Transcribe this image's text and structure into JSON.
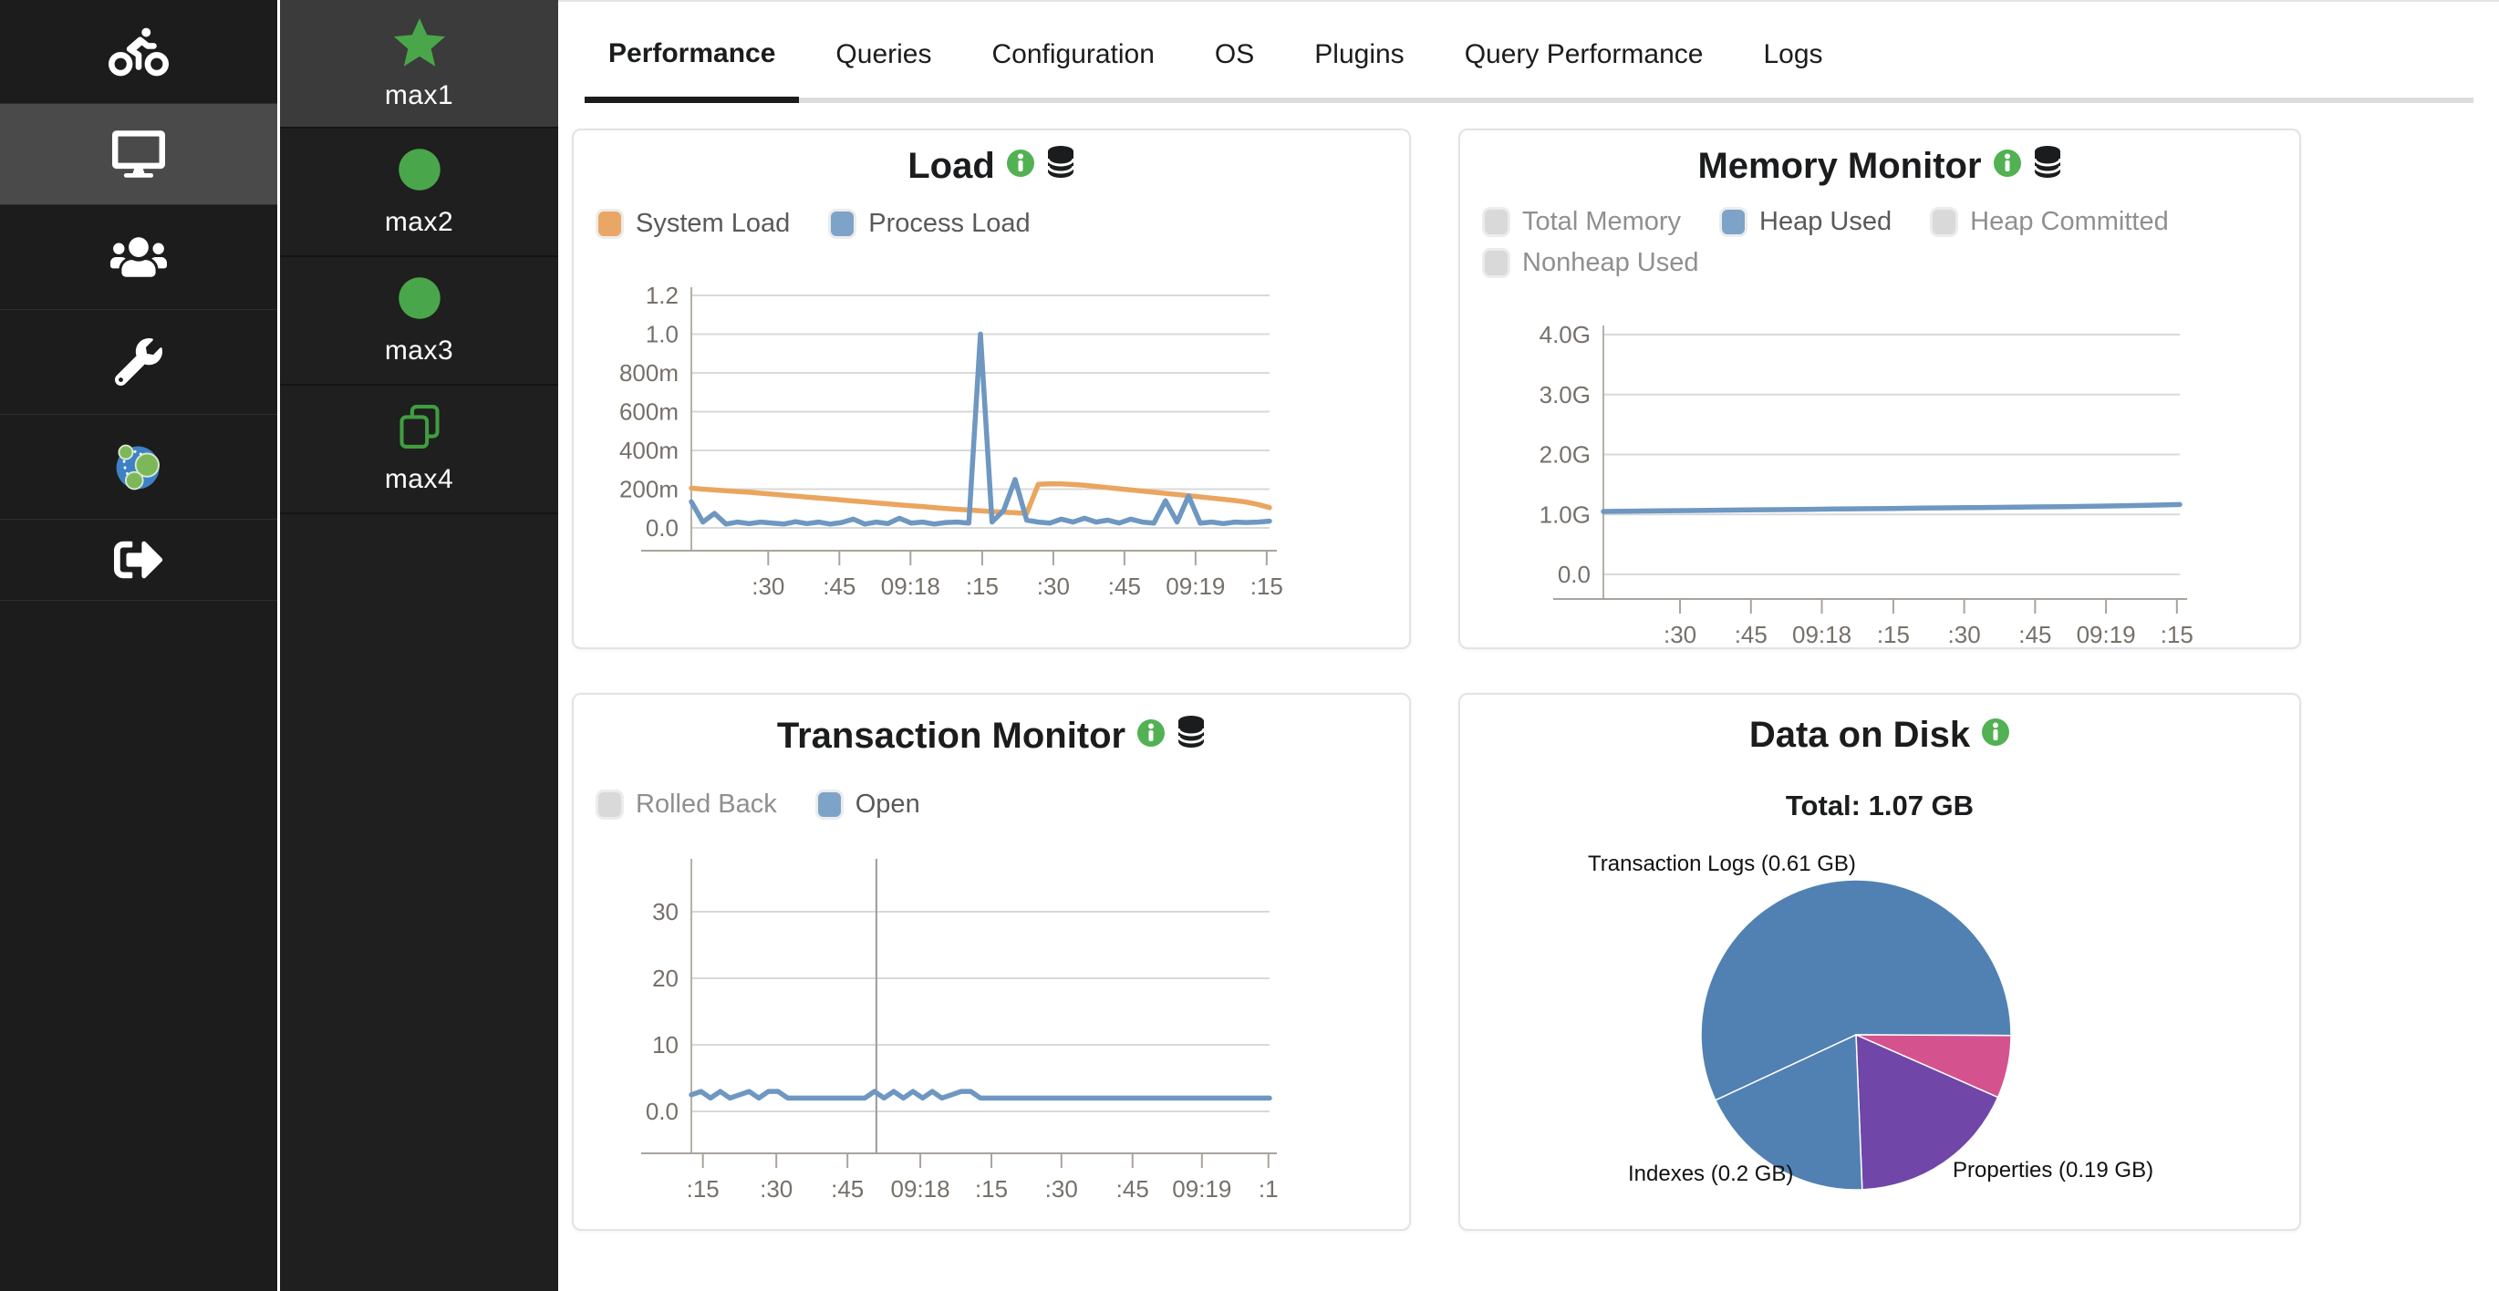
{
  "theme": {
    "accent_green": "#4aa64a",
    "info_green": "#52b152",
    "sidebar_bg": "#1c1c1c",
    "sidebar_active_bg": "#4a4a4a",
    "nodelist_active_bg": "#3b3b3b",
    "chart_blue": "#6e97c1",
    "chart_orange": "#eaa55e",
    "disabled_swatch": "#d9d9d9"
  },
  "sidebar": {
    "items": [
      {
        "icon": "cyclist-icon",
        "name": "logo",
        "active": false
      },
      {
        "icon": "monitor-icon",
        "name": "monitoring",
        "active": true
      },
      {
        "icon": "users-icon",
        "name": "users",
        "active": false
      },
      {
        "icon": "wrench-icon",
        "name": "settings",
        "active": false
      },
      {
        "icon": "neo4j-icon",
        "name": "neo4j",
        "active": false
      },
      {
        "icon": "sign-out-icon",
        "name": "sign-out",
        "active": false
      }
    ]
  },
  "nodes": [
    {
      "label": "max1",
      "icon": "star-icon",
      "active": true
    },
    {
      "label": "max2",
      "icon": "circle-icon",
      "active": false
    },
    {
      "label": "max3",
      "icon": "circle-icon",
      "active": false
    },
    {
      "label": "max4",
      "icon": "copy-icon",
      "active": false
    }
  ],
  "tabs": [
    {
      "label": "Performance",
      "active": true
    },
    {
      "label": "Queries",
      "active": false
    },
    {
      "label": "Configuration",
      "active": false
    },
    {
      "label": "OS",
      "active": false
    },
    {
      "label": "Plugins",
      "active": false
    },
    {
      "label": "Query Performance",
      "active": false
    },
    {
      "label": "Logs",
      "active": false
    }
  ],
  "cards": {
    "load": {
      "title": "Load",
      "title_icons": [
        "info-icon",
        "database-icon"
      ],
      "legend": [
        {
          "label": "System Load",
          "swatch": "#e9a765",
          "enabled": true
        },
        {
          "label": "Process Load",
          "swatch": "#7ea3c8",
          "enabled": true
        }
      ]
    },
    "memory": {
      "title": "Memory Monitor",
      "title_icons": [
        "info-icon",
        "database-icon"
      ],
      "legend": [
        {
          "label": "Total Memory",
          "swatch": "#d9d9d9",
          "enabled": false
        },
        {
          "label": "Heap Used",
          "swatch": "#7ea3c8",
          "enabled": true
        },
        {
          "label": "Heap Committed",
          "swatch": "#d9d9d9",
          "enabled": false
        },
        {
          "label": "Nonheap Used",
          "swatch": "#d9d9d9",
          "enabled": false
        }
      ]
    },
    "transaction": {
      "title": "Transaction Monitor",
      "title_icons": [
        "info-icon",
        "database-icon"
      ],
      "legend": [
        {
          "label": "Rolled Back",
          "swatch": "#d9d9d9",
          "enabled": false
        },
        {
          "label": "Open",
          "swatch": "#7ea3c8",
          "enabled": true
        }
      ]
    },
    "disk": {
      "title": "Data on Disk",
      "title_icons": [
        "info-icon"
      ],
      "total": "Total: 1.07 GB"
    }
  },
  "chart_data": [
    {
      "type": "line",
      "title": "Load",
      "x_ticks": [
        ":30",
        ":45",
        "09:18",
        ":15",
        ":30",
        ":45",
        "09:19",
        ":15"
      ],
      "x_tick_pos": [
        0.133,
        0.256,
        0.379,
        0.503,
        0.626,
        0.749,
        0.872,
        0.995
      ],
      "y_ticks": [
        {
          "label": "0.0",
          "v": 0
        },
        {
          "label": "200m",
          "v": 0.2
        },
        {
          "label": "400m",
          "v": 0.4
        },
        {
          "label": "600m",
          "v": 0.6
        },
        {
          "label": "800m",
          "v": 0.8
        },
        {
          "label": "1.0",
          "v": 1.0
        },
        {
          "label": "1.2",
          "v": 1.2
        }
      ],
      "ylim": [
        0,
        1.25
      ],
      "grid": true,
      "legend_position": "top-left",
      "series": [
        {
          "name": "System Load",
          "color": "#eaa55e",
          "values": [
            0.205,
            0.2,
            0.196,
            0.192,
            0.188,
            0.184,
            0.179,
            0.174,
            0.169,
            0.164,
            0.159,
            0.154,
            0.149,
            0.144,
            0.139,
            0.134,
            0.129,
            0.124,
            0.119,
            0.114,
            0.11,
            0.105,
            0.1,
            0.096,
            0.092,
            0.088,
            0.084,
            0.081,
            0.078,
            0.075,
            0.225,
            0.228,
            0.227,
            0.224,
            0.22,
            0.214,
            0.208,
            0.202,
            0.196,
            0.19,
            0.184,
            0.178,
            0.172,
            0.166,
            0.16,
            0.154,
            0.148,
            0.141,
            0.133,
            0.121,
            0.105
          ]
        },
        {
          "name": "Process Load",
          "color": "#6e97c1",
          "values": [
            0.135,
            0.03,
            0.075,
            0.02,
            0.03,
            0.022,
            0.03,
            0.025,
            0.02,
            0.032,
            0.022,
            0.03,
            0.02,
            0.028,
            0.045,
            0.02,
            0.03,
            0.022,
            0.05,
            0.025,
            0.03,
            0.02,
            0.028,
            0.03,
            0.025,
            1.0,
            0.03,
            0.09,
            0.25,
            0.04,
            0.03,
            0.025,
            0.045,
            0.03,
            0.05,
            0.03,
            0.04,
            0.025,
            0.045,
            0.03,
            0.025,
            0.14,
            0.03,
            0.165,
            0.025,
            0.03,
            0.022,
            0.03,
            0.028,
            0.03,
            0.035
          ]
        }
      ]
    },
    {
      "type": "line",
      "title": "Memory Monitor",
      "x_ticks": [
        ":30",
        ":45",
        "09:18",
        ":15",
        ":30",
        ":45",
        "09:19",
        ":15"
      ],
      "x_tick_pos": [
        0.133,
        0.256,
        0.379,
        0.503,
        0.626,
        0.749,
        0.872,
        0.995
      ],
      "y_ticks": [
        {
          "label": "0.0",
          "v": 0
        },
        {
          "label": "1.0G",
          "v": 1
        },
        {
          "label": "2.0G",
          "v": 2
        },
        {
          "label": "3.0G",
          "v": 3
        },
        {
          "label": "4.0G",
          "v": 4
        }
      ],
      "ylim": [
        0,
        4.15
      ],
      "grid": true,
      "legend_position": "top-left",
      "series": [
        {
          "name": "Heap Used",
          "color": "#6e97c1",
          "values": [
            1.05,
            1.055,
            1.06,
            1.065,
            1.07,
            1.075,
            1.08,
            1.085,
            1.09,
            1.095,
            1.1,
            1.105,
            1.11,
            1.115,
            1.12,
            1.125,
            1.13,
            1.138,
            1.146,
            1.155,
            1.165
          ]
        }
      ]
    },
    {
      "type": "line",
      "title": "Transaction Monitor",
      "x_ticks": [
        ":15",
        ":30",
        ":45",
        "09:18",
        ":15",
        ":30",
        ":45",
        "09:19",
        ":1"
      ],
      "x_tick_pos": [
        0.02,
        0.147,
        0.27,
        0.396,
        0.519,
        0.64,
        0.763,
        0.883,
        0.998
      ],
      "y_ticks": [
        {
          "label": "0.0",
          "v": 0
        },
        {
          "label": "10",
          "v": 10
        },
        {
          "label": "20",
          "v": 20
        },
        {
          "label": "30",
          "v": 30
        }
      ],
      "ylim": [
        0,
        38
      ],
      "grid": true,
      "vline_t": 0.32,
      "legend_position": "top-left",
      "series": [
        {
          "name": "Open",
          "color": "#6e97c1",
          "values": [
            2.5,
            3,
            2,
            3,
            2,
            2.5,
            3,
            2,
            3,
            3,
            2,
            2,
            2,
            2,
            2,
            2,
            2,
            2,
            2,
            3,
            2,
            3,
            2,
            3,
            2,
            3,
            2,
            2.5,
            3,
            3,
            2,
            2,
            2,
            2,
            2,
            2,
            2,
            2,
            2,
            2,
            2,
            2,
            2,
            2,
            2,
            2,
            2,
            2,
            2,
            2,
            2,
            2,
            2,
            2,
            2,
            2,
            2,
            2,
            2,
            2,
            2
          ]
        }
      ]
    },
    {
      "type": "pie",
      "title": "Data on Disk",
      "total_label": "Total: 1.07 GB",
      "total_gb": 1.07,
      "start_angle_deg": 245,
      "slices": [
        {
          "label": "Transaction Logs (0.61 GB)",
          "value": 0.61,
          "color": "#5181b2"
        },
        {
          "label": "",
          "value": 0.07,
          "color": "#d4538f"
        },
        {
          "label": "Properties (0.19 GB)",
          "value": 0.19,
          "color": "#7046a8"
        },
        {
          "label": "Indexes (0.2 GB)",
          "value": 0.2,
          "color": "#5181b2"
        }
      ]
    }
  ]
}
